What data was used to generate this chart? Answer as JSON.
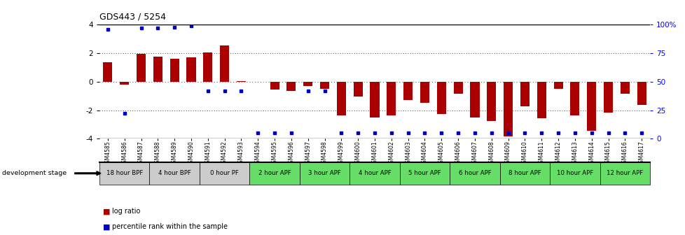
{
  "title": "GDS443 / 5254",
  "samples": [
    "GSM4585",
    "GSM4586",
    "GSM4587",
    "GSM4588",
    "GSM4589",
    "GSM4590",
    "GSM4591",
    "GSM4592",
    "GSM4593",
    "GSM4594",
    "GSM4595",
    "GSM4596",
    "GSM4597",
    "GSM4598",
    "GSM4599",
    "GSM4600",
    "GSM4601",
    "GSM4602",
    "GSM4603",
    "GSM4604",
    "GSM4605",
    "GSM4606",
    "GSM4607",
    "GSM4608",
    "GSM4609",
    "GSM4610",
    "GSM4611",
    "GSM4612",
    "GSM4613",
    "GSM4614",
    "GSM4615",
    "GSM4616",
    "GSM4617"
  ],
  "log_ratio": [
    1.35,
    -0.2,
    1.95,
    1.75,
    1.6,
    1.7,
    2.05,
    2.55,
    0.05,
    0.0,
    -0.55,
    -0.65,
    -0.3,
    -0.5,
    -2.35,
    -1.05,
    -2.5,
    -2.35,
    -1.3,
    -1.5,
    -2.25,
    -0.85,
    -2.5,
    -2.75,
    -3.85,
    -1.75,
    -2.55,
    -0.5,
    -2.35,
    -3.45,
    -2.15,
    -0.85,
    -1.65
  ],
  "percentile": [
    96,
    22,
    97,
    97,
    98,
    99,
    42,
    42,
    42,
    5,
    5,
    5,
    42,
    42,
    5,
    5,
    5,
    5,
    5,
    5,
    5,
    5,
    5,
    5,
    5,
    5,
    5,
    5,
    5,
    5,
    5,
    5,
    5
  ],
  "stages": [
    {
      "label": "18 hour BPF",
      "start": 0,
      "end": 3,
      "color": "#cccccc"
    },
    {
      "label": "4 hour BPF",
      "start": 3,
      "end": 6,
      "color": "#cccccc"
    },
    {
      "label": "0 hour PF",
      "start": 6,
      "end": 9,
      "color": "#cccccc"
    },
    {
      "label": "2 hour APF",
      "start": 9,
      "end": 12,
      "color": "#66dd66"
    },
    {
      "label": "3 hour APF",
      "start": 12,
      "end": 15,
      "color": "#66dd66"
    },
    {
      "label": "4 hour APF",
      "start": 15,
      "end": 18,
      "color": "#66dd66"
    },
    {
      "label": "5 hour APF",
      "start": 18,
      "end": 21,
      "color": "#66dd66"
    },
    {
      "label": "6 hour APF",
      "start": 21,
      "end": 24,
      "color": "#66dd66"
    },
    {
      "label": "8 hour APF",
      "start": 24,
      "end": 27,
      "color": "#66dd66"
    },
    {
      "label": "10 hour APF",
      "start": 27,
      "end": 30,
      "color": "#66dd66"
    },
    {
      "label": "12 hour APF",
      "start": 30,
      "end": 33,
      "color": "#66dd66"
    }
  ],
  "bar_color": "#aa0000",
  "dot_color": "#0000bb",
  "ylim": [
    -4,
    4
  ],
  "y2lim": [
    0,
    100
  ],
  "yticks": [
    -4,
    -2,
    0,
    2,
    4
  ],
  "y2ticks": [
    0,
    25,
    50,
    75,
    100
  ],
  "dev_stage_label": "development stage",
  "legend_items": [
    {
      "color": "#aa0000",
      "label": "log ratio"
    },
    {
      "color": "#0000bb",
      "label": "percentile rank within the sample"
    }
  ]
}
